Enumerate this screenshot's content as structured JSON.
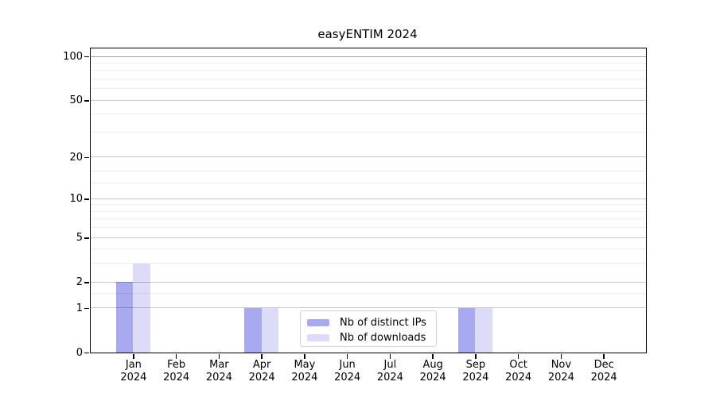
{
  "title": "easyENTIM 2024",
  "colors": {
    "bar_distinct_ips": "#a9a9f2",
    "bar_downloads": "#dcdcf8",
    "grid_major": "rgba(0,0,0,0.22)",
    "grid_major_top": "rgba(0,0,0,0.38)",
    "grid_minor": "rgba(0,0,0,0.07)",
    "axis": "#000000"
  },
  "legend": {
    "items": [
      {
        "label": "Nb of distinct IPs",
        "color_key": "bar_distinct_ips"
      },
      {
        "label": "Nb of downloads",
        "color_key": "bar_downloads"
      }
    ]
  },
  "chart_data": {
    "type": "bar",
    "title": "easyENTIM 2024",
    "categories": [
      "Jan",
      "Feb",
      "Mar",
      "Apr",
      "May",
      "Jun",
      "Jul",
      "Aug",
      "Sep",
      "Oct",
      "Nov",
      "Dec"
    ],
    "x_tick_year": "2024",
    "series": [
      {
        "name": "Nb of distinct IPs",
        "color_key": "bar_distinct_ips",
        "values": [
          2,
          0,
          0,
          1,
          0,
          0,
          0,
          0,
          1,
          0,
          0,
          0
        ]
      },
      {
        "name": "Nb of downloads",
        "color_key": "bar_downloads",
        "values": [
          3,
          0,
          0,
          1,
          0,
          0,
          0,
          0,
          1,
          0,
          0,
          0
        ]
      }
    ],
    "y_scale": "log10(1+v)",
    "ylim": [
      0,
      100
    ],
    "y_ticks": [
      0,
      1,
      2,
      5,
      10,
      20,
      50,
      100
    ],
    "y_minor_gridlines": [
      1.5,
      3,
      4,
      6,
      7,
      8,
      9,
      13,
      16,
      30,
      40,
      60,
      70,
      80,
      90
    ],
    "grid": "horizontal",
    "legend_position": "lower center"
  }
}
